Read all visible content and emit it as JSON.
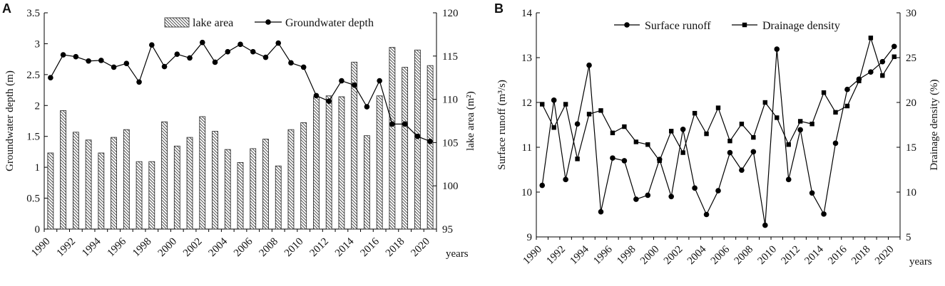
{
  "chart_data": [
    {
      "type": "bar+line",
      "panel_label": "A",
      "years": [
        1990,
        1991,
        1992,
        1993,
        1994,
        1995,
        1996,
        1997,
        1998,
        1999,
        2000,
        2001,
        2002,
        2003,
        2004,
        2005,
        2006,
        2007,
        2008,
        2009,
        2010,
        2011,
        2012,
        2013,
        2014,
        2015,
        2016,
        2017,
        2018,
        2019,
        2020
      ],
      "x_tick_labels": [
        "1990",
        "1992",
        "1994",
        "1996",
        "1998",
        "2000",
        "2002",
        "2004",
        "2006",
        "2008",
        "2010",
        "2012",
        "2014",
        "2016",
        "2018",
        "2020"
      ],
      "xlabel": "years",
      "left_axis": {
        "label": "Groundwater depth (m)",
        "range": [
          0,
          3.5
        ],
        "ticks": [
          "0",
          "0.5",
          "1",
          "1.5",
          "2",
          "2.5",
          "3",
          "3.5"
        ]
      },
      "right_axis": {
        "label": "lake area (m²)",
        "range": [
          95,
          120
        ],
        "ticks": [
          "95",
          "100",
          "105",
          "110",
          "115",
          "120"
        ]
      },
      "series": [
        {
          "name": "lake area",
          "kind": "bar",
          "axis": "right",
          "values": [
            103.8,
            108.7,
            106.2,
            105.3,
            103.8,
            105.6,
            106.5,
            102.8,
            102.8,
            107.4,
            104.6,
            105.6,
            108.0,
            106.3,
            104.2,
            102.7,
            104.3,
            105.4,
            102.3,
            106.5,
            107.3,
            110.3,
            110.4,
            110.3,
            114.3,
            105.8,
            110.4,
            116.0,
            113.7,
            115.7,
            113.9
          ]
        },
        {
          "name": "Groundwater depth",
          "kind": "line",
          "axis": "left",
          "values": [
            2.45,
            2.82,
            2.79,
            2.72,
            2.73,
            2.62,
            2.68,
            2.38,
            2.98,
            2.63,
            2.83,
            2.77,
            3.02,
            2.7,
            2.87,
            2.99,
            2.87,
            2.78,
            3.01,
            2.69,
            2.62,
            2.16,
            2.07,
            2.4,
            2.33,
            1.98,
            2.4,
            1.7,
            1.7,
            1.5,
            1.42
          ]
        }
      ]
    },
    {
      "type": "line",
      "panel_label": "B",
      "years": [
        1990,
        1991,
        1992,
        1993,
        1994,
        1995,
        1996,
        1997,
        1998,
        1999,
        2000,
        2001,
        2002,
        2003,
        2004,
        2005,
        2006,
        2007,
        2008,
        2009,
        2010,
        2011,
        2012,
        2013,
        2014,
        2015,
        2016,
        2017,
        2018,
        2019,
        2020
      ],
      "x_tick_labels": [
        "1990",
        "1992",
        "1994",
        "1996",
        "1998",
        "2000",
        "2002",
        "2004",
        "2006",
        "2008",
        "2010",
        "2012",
        "2014",
        "2016",
        "2018",
        "2020"
      ],
      "xlabel": "years",
      "left_axis": {
        "label": "Surface runoff (m³/s)",
        "range": [
          9,
          14
        ],
        "ticks": [
          "9",
          "10",
          "11",
          "12",
          "13",
          "14"
        ]
      },
      "right_axis": {
        "label": "Drainage density (%)",
        "range": [
          5,
          30
        ],
        "ticks": [
          "5",
          "10",
          "15",
          "20",
          "25",
          "30"
        ]
      },
      "series": [
        {
          "name": "Surface runoff",
          "kind": "line",
          "marker": "circle",
          "axis": "left",
          "values": [
            10.15,
            12.05,
            10.28,
            11.52,
            12.83,
            9.56,
            10.76,
            10.7,
            9.84,
            9.93,
            10.73,
            9.9,
            11.4,
            10.09,
            9.5,
            10.03,
            10.88,
            10.49,
            10.9,
            9.26,
            13.19,
            10.28,
            11.39,
            9.98,
            9.51,
            11.09,
            12.29,
            12.52,
            12.68,
            12.91,
            13.25
          ]
        },
        {
          "name": "Drainage density",
          "kind": "line",
          "marker": "square",
          "axis": "right",
          "values": [
            19.8,
            17.2,
            19.8,
            13.7,
            18.7,
            19.1,
            16.6,
            17.3,
            15.6,
            15.3,
            13.5,
            16.8,
            14.4,
            18.8,
            16.5,
            19.4,
            15.7,
            17.6,
            16.1,
            20.0,
            18.3,
            15.3,
            17.9,
            17.6,
            21.1,
            18.9,
            19.6,
            22.4,
            27.2,
            23.0,
            25.1
          ]
        }
      ]
    }
  ]
}
